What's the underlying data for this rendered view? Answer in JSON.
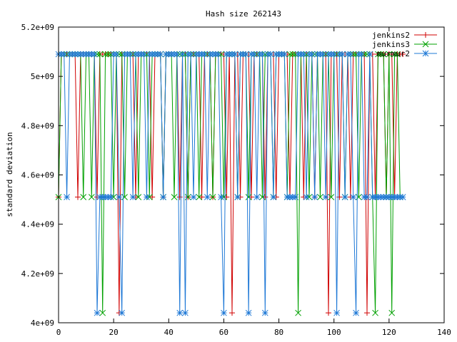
{
  "chart_data": {
    "type": "line",
    "title": "Hash size 262143",
    "xlabel": "",
    "ylabel": "standard deviation",
    "xlim": [
      0,
      140
    ],
    "ylim": [
      4000000000.0,
      5200000000.0
    ],
    "x_ticks": [
      0,
      20,
      40,
      60,
      80,
      100,
      120,
      140
    ],
    "x_tick_labels": [
      "0",
      "20",
      "40",
      "60",
      "80",
      "100",
      "120",
      "140"
    ],
    "y_ticks": [
      4000000000.0,
      4200000000.0,
      4400000000.0,
      4600000000.0,
      4800000000.0,
      5000000000.0,
      5200000000.0
    ],
    "y_tick_labels": [
      "4e+09",
      "4.2e+09",
      "4.4e+09",
      "4.6e+09",
      "4.8e+09",
      "5e+09",
      "5.2e+09"
    ],
    "grid": false,
    "legend_position": "top-right",
    "series": [
      {
        "name": "jenkins2",
        "color": "#d00000",
        "marker": "plus",
        "values": [
          4510000000.0,
          5090000000.0,
          5090000000.0,
          5090000000.0,
          5090000000.0,
          5090000000.0,
          5090000000.0,
          4510000000.0,
          5090000000.0,
          5090000000.0,
          5090000000.0,
          5090000000.0,
          5090000000.0,
          5090000000.0,
          4510000000.0,
          5090000000.0,
          5090000000.0,
          5090000000.0,
          5090000000.0,
          5090000000.0,
          5090000000.0,
          5090000000.0,
          4040000000.0,
          5090000000.0,
          5090000000.0,
          5090000000.0,
          5090000000.0,
          5090000000.0,
          4510000000.0,
          5090000000.0,
          5090000000.0,
          5090000000.0,
          5090000000.0,
          5090000000.0,
          4510000000.0,
          5090000000.0,
          5090000000.0,
          5090000000.0,
          4510000000.0,
          5090000000.0,
          5090000000.0,
          5090000000.0,
          5090000000.0,
          5090000000.0,
          4510000000.0,
          5090000000.0,
          5090000000.0,
          4510000000.0,
          5090000000.0,
          5090000000.0,
          5090000000.0,
          5090000000.0,
          4510000000.0,
          5090000000.0,
          5090000000.0,
          5090000000.0,
          4510000000.0,
          5090000000.0,
          5090000000.0,
          5090000000.0,
          5090000000.0,
          4510000000.0,
          5090000000.0,
          4040000000.0,
          5090000000.0,
          5090000000.0,
          4510000000.0,
          5090000000.0,
          5090000000.0,
          5090000000.0,
          4510000000.0,
          5090000000.0,
          5090000000.0,
          5090000000.0,
          5090000000.0,
          4510000000.0,
          5090000000.0,
          5090000000.0,
          5090000000.0,
          4510000000.0,
          5090000000.0,
          5090000000.0,
          5090000000.0,
          5090000000.0,
          4510000000.0,
          5090000000.0,
          5090000000.0,
          5090000000.0,
          5090000000.0,
          4510000000.0,
          5090000000.0,
          5090000000.0,
          5090000000.0,
          4510000000.0,
          5090000000.0,
          5090000000.0,
          5090000000.0,
          5090000000.0,
          4040000000.0,
          5090000000.0,
          5090000000.0,
          5090000000.0,
          4510000000.0,
          5090000000.0,
          5090000000.0,
          5090000000.0,
          4510000000.0,
          5090000000.0,
          5090000000.0,
          5090000000.0,
          5090000000.0,
          5090000000.0,
          4040000000.0,
          5090000000.0,
          5090000000.0,
          4510000000.0,
          5090000000.0,
          5090000000.0,
          5090000000.0,
          4510000000.0,
          5090000000.0,
          5090000000.0,
          4510000000.0,
          5090000000.0,
          5090000000.0,
          5090000000.0
        ]
      },
      {
        "name": "jenkins3",
        "color": "#00a000",
        "marker": "cross",
        "values": [
          4510000000.0,
          5090000000.0,
          5090000000.0,
          5090000000.0,
          5090000000.0,
          5090000000.0,
          5090000000.0,
          5090000000.0,
          5090000000.0,
          4510000000.0,
          5090000000.0,
          5090000000.0,
          4510000000.0,
          5090000000.0,
          5090000000.0,
          5090000000.0,
          4040000000.0,
          5090000000.0,
          5090000000.0,
          5090000000.0,
          4510000000.0,
          5090000000.0,
          5090000000.0,
          5090000000.0,
          4510000000.0,
          5090000000.0,
          5090000000.0,
          5090000000.0,
          5090000000.0,
          4510000000.0,
          5090000000.0,
          5090000000.0,
          5090000000.0,
          4510000000.0,
          5090000000.0,
          5090000000.0,
          5090000000.0,
          5090000000.0,
          4510000000.0,
          5090000000.0,
          5090000000.0,
          5090000000.0,
          4510000000.0,
          5090000000.0,
          5090000000.0,
          5090000000.0,
          5090000000.0,
          4510000000.0,
          5090000000.0,
          5090000000.0,
          5090000000.0,
          4510000000.0,
          5090000000.0,
          5090000000.0,
          5090000000.0,
          5090000000.0,
          4510000000.0,
          5090000000.0,
          5090000000.0,
          5090000000.0,
          4510000000.0,
          5090000000.0,
          5090000000.0,
          5090000000.0,
          5090000000.0,
          4510000000.0,
          5090000000.0,
          5090000000.0,
          5090000000.0,
          4510000000.0,
          5090000000.0,
          5090000000.0,
          5090000000.0,
          5090000000.0,
          4510000000.0,
          5090000000.0,
          5090000000.0,
          5090000000.0,
          4510000000.0,
          5090000000.0,
          5090000000.0,
          5090000000.0,
          5090000000.0,
          4510000000.0,
          5090000000.0,
          5090000000.0,
          5090000000.0,
          4040000000.0,
          5090000000.0,
          5090000000.0,
          5090000000.0,
          4510000000.0,
          5090000000.0,
          5090000000.0,
          5090000000.0,
          4510000000.0,
          5090000000.0,
          5090000000.0,
          5090000000.0,
          4510000000.0,
          5090000000.0,
          5090000000.0,
          5090000000.0,
          5090000000.0,
          4510000000.0,
          5090000000.0,
          5090000000.0,
          5090000000.0,
          5090000000.0,
          4510000000.0,
          5090000000.0,
          5090000000.0,
          5090000000.0,
          5090000000.0,
          4510000000.0,
          4040000000.0,
          5090000000.0,
          5090000000.0,
          5090000000.0,
          4510000000.0,
          5090000000.0,
          4040000000.0,
          5090000000.0,
          5090000000.0,
          4510000000.0
        ]
      },
      {
        "name": "murmur2",
        "color": "#1e78d6",
        "marker": "star",
        "values": [
          5090000000.0,
          5090000000.0,
          5090000000.0,
          4510000000.0,
          5090000000.0,
          5090000000.0,
          5090000000.0,
          5090000000.0,
          5090000000.0,
          5090000000.0,
          5090000000.0,
          5090000000.0,
          5090000000.0,
          5090000000.0,
          4040000000.0,
          4510000000.0,
          4510000000.0,
          4510000000.0,
          4510000000.0,
          4510000000.0,
          5090000000.0,
          5090000000.0,
          4510000000.0,
          4040000000.0,
          5090000000.0,
          5090000000.0,
          5090000000.0,
          4510000000.0,
          5090000000.0,
          5090000000.0,
          5090000000.0,
          5090000000.0,
          4510000000.0,
          5090000000.0,
          5090000000.0,
          5090000000.0,
          5090000000.0,
          5090000000.0,
          4510000000.0,
          5090000000.0,
          5090000000.0,
          5090000000.0,
          5090000000.0,
          5090000000.0,
          4040000000.0,
          5090000000.0,
          4040000000.0,
          5090000000.0,
          5090000000.0,
          4510000000.0,
          5090000000.0,
          5090000000.0,
          5090000000.0,
          5090000000.0,
          4510000000.0,
          5090000000.0,
          5090000000.0,
          5090000000.0,
          5090000000.0,
          4510000000.0,
          4040000000.0,
          5090000000.0,
          5090000000.0,
          5090000000.0,
          5090000000.0,
          4510000000.0,
          5090000000.0,
          5090000000.0,
          5090000000.0,
          4040000000.0,
          5090000000.0,
          5090000000.0,
          4510000000.0,
          5090000000.0,
          5090000000.0,
          4040000000.0,
          5090000000.0,
          5090000000.0,
          4510000000.0,
          5090000000.0,
          5090000000.0,
          5090000000.0,
          5090000000.0,
          4510000000.0,
          4510000000.0,
          4510000000.0,
          4510000000.0,
          5090000000.0,
          5090000000.0,
          5090000000.0,
          4510000000.0,
          5090000000.0,
          5090000000.0,
          4510000000.0,
          5090000000.0,
          5090000000.0,
          5090000000.0,
          4510000000.0,
          5090000000.0,
          5090000000.0,
          5090000000.0,
          4040000000.0,
          5090000000.0,
          5090000000.0,
          4510000000.0,
          5090000000.0,
          5090000000.0,
          4510000000.0,
          4040000000.0,
          5090000000.0,
          5090000000.0,
          4510000000.0,
          4510000000.0,
          5090000000.0,
          4510000000.0,
          4510000000.0,
          4510000000.0,
          4510000000.0,
          4510000000.0,
          4510000000.0,
          4510000000.0,
          4510000000.0,
          4510000000.0,
          4510000000.0,
          4510000000.0,
          4510000000.0
        ]
      }
    ]
  }
}
